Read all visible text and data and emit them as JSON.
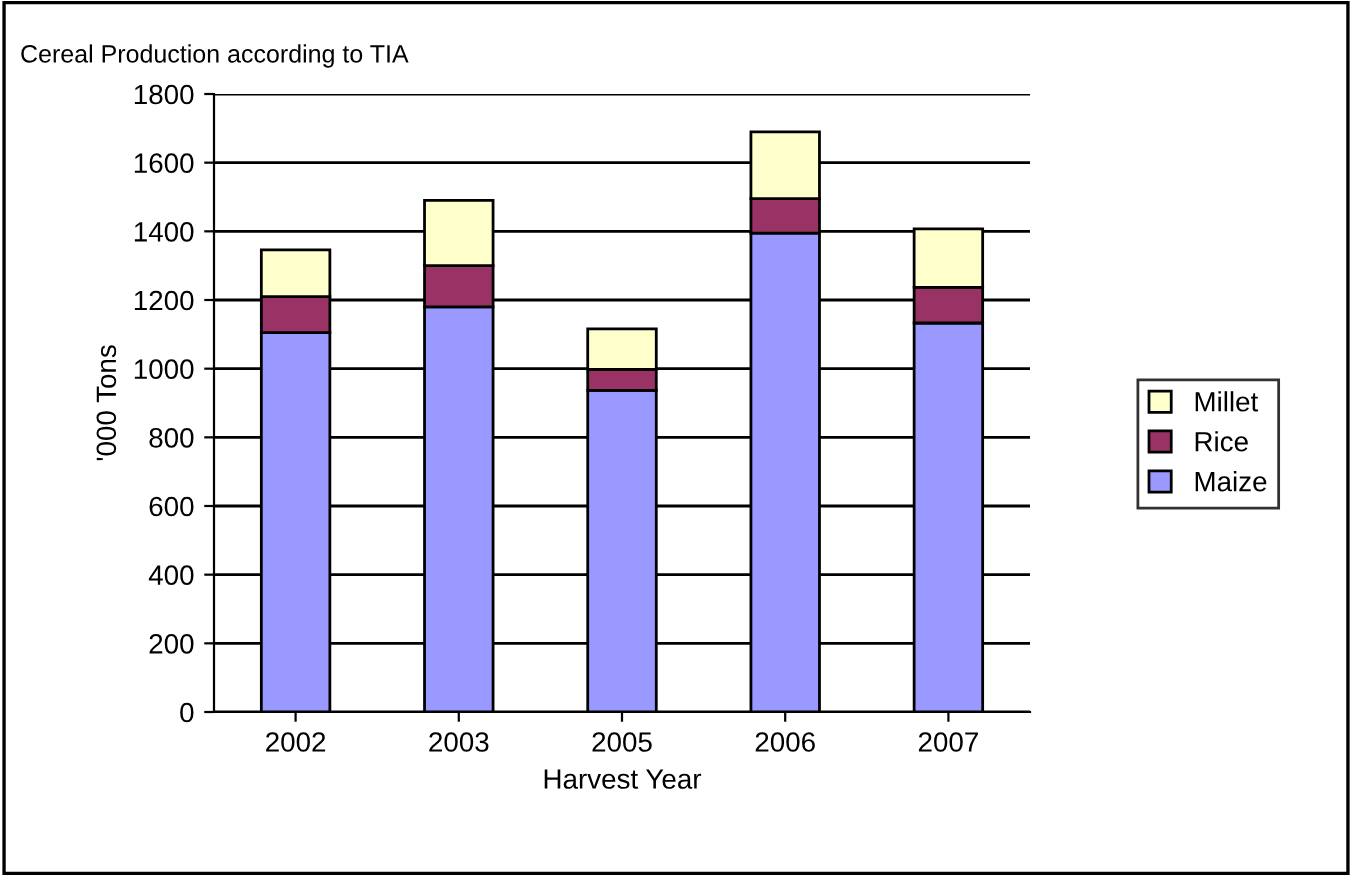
{
  "chart_data": {
    "type": "bar",
    "title": "Cereal Production according to TIA",
    "xlabel": "Harvest Year",
    "ylabel": "'000 Tons",
    "categories": [
      "2002",
      "2003",
      "2005",
      "2006",
      "2007"
    ],
    "stacked": true,
    "series": [
      {
        "name": "Maize",
        "color": "#9999ff",
        "values": [
          1105,
          1180,
          937,
          1395,
          1133
        ]
      },
      {
        "name": "Rice",
        "color": "#993366",
        "values": [
          105,
          120,
          61,
          100,
          104
        ]
      },
      {
        "name": "Millet",
        "color": "#ffffcc",
        "values": [
          136,
          190,
          118,
          195,
          170
        ]
      }
    ],
    "ylim": [
      0,
      1800
    ],
    "yticks": [
      0,
      200,
      400,
      600,
      800,
      1000,
      1200,
      1400,
      1600,
      1800
    ],
    "grid": "y",
    "legend": "right"
  }
}
